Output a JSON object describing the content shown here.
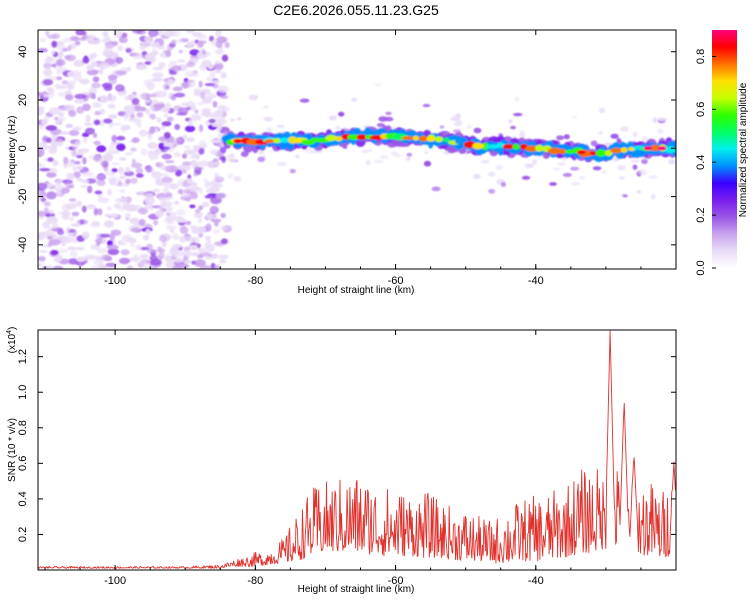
{
  "figure": {
    "title": "C2E6.2026.055.11.23.G25"
  },
  "colors": {
    "snr_line": "#e0322d",
    "frame": "#000000",
    "cmap": [
      "#ffffff",
      "#e9dcf7",
      "#c9a4ee",
      "#9a55e6",
      "#7a1ef0",
      "#3a00ff",
      "#0090ff",
      "#00f0f0",
      "#00ff60",
      "#30ff00",
      "#c8ff00",
      "#ffe000",
      "#ff7000",
      "#ff0000",
      "#ff0080"
    ]
  },
  "chart_data": [
    {
      "type": "heatmap",
      "name": "spectrogram",
      "xlabel": "Height of straight line (km)",
      "ylabel": "Frequency (Hz)",
      "xlim": [
        -111,
        -20
      ],
      "ylim": [
        -50,
        49
      ],
      "xticks": [
        -100,
        -80,
        -60,
        -40
      ],
      "xtick_labels": [
        "-100",
        "-80",
        "-60",
        "-40"
      ],
      "yticks": [
        -40,
        -20,
        0,
        20,
        40
      ],
      "ytick_labels": [
        "-40",
        "-20",
        "0",
        "20",
        "40"
      ],
      "noise_region_x": [
        -111,
        -84
      ],
      "signal_track": {
        "x": [
          -84,
          -80,
          -76,
          -72,
          -68,
          -64,
          -60,
          -56,
          -52,
          -48,
          -44,
          -40,
          -36,
          -32,
          -28,
          -24,
          -20
        ],
        "freq": [
          3,
          3,
          3,
          3,
          4,
          5,
          5,
          4,
          3,
          1,
          1,
          0,
          -1,
          -2,
          -1,
          0,
          0
        ]
      },
      "colorbar": {
        "label": "Normalized spectral amplitude",
        "range": [
          0.0,
          0.9
        ],
        "ticks": [
          0.0,
          0.2,
          0.4,
          0.6,
          0.8
        ],
        "tick_labels": [
          "0.0",
          "0.2",
          "0.4",
          "0.6",
          "0.8"
        ]
      }
    },
    {
      "type": "line",
      "name": "snr",
      "xlabel": "Height of straight line (km)",
      "ylabel": "SNR (10 * v/v)",
      "y_scale_label": "(x10",
      "y_scale_exp": "4",
      "y_scale_close": ")",
      "xlim": [
        -111,
        -20
      ],
      "ylim": [
        0.0,
        1.35
      ],
      "xticks": [
        -100,
        -80,
        -60,
        -40
      ],
      "xtick_labels": [
        "-100",
        "-80",
        "-60",
        "-40"
      ],
      "yticks": [
        0.2,
        0.4,
        0.6,
        0.8,
        1.0,
        1.2
      ],
      "ytick_labels": [
        "0.2",
        "0.4",
        "0.6",
        "0.8",
        "1.0",
        "1.2"
      ],
      "envelope": {
        "x": [
          -111,
          -90,
          -85,
          -83,
          -80,
          -78,
          -76,
          -74,
          -72,
          -70,
          -68,
          -66,
          -64,
          -62,
          -60,
          -58,
          -56,
          -54,
          -52,
          -50,
          -48,
          -46,
          -44,
          -42,
          -40,
          -38,
          -36,
          -34,
          -32,
          -30,
          -29,
          -28,
          -27,
          -26,
          -24,
          -22,
          -20
        ],
        "low": [
          0.01,
          0.01,
          0.01,
          0.02,
          0.02,
          0.03,
          0.04,
          0.05,
          0.08,
          0.1,
          0.1,
          0.1,
          0.09,
          0.08,
          0.08,
          0.08,
          0.07,
          0.07,
          0.06,
          0.05,
          0.05,
          0.04,
          0.04,
          0.05,
          0.05,
          0.06,
          0.07,
          0.09,
          0.1,
          0.12,
          0.13,
          0.12,
          0.1,
          0.09,
          0.08,
          0.06,
          0.1
        ],
        "high": [
          0.02,
          0.02,
          0.03,
          0.06,
          0.1,
          0.12,
          0.18,
          0.32,
          0.46,
          0.5,
          0.52,
          0.55,
          0.52,
          0.48,
          0.46,
          0.44,
          0.45,
          0.4,
          0.36,
          0.34,
          0.3,
          0.28,
          0.36,
          0.4,
          0.42,
          0.44,
          0.48,
          0.56,
          0.6,
          0.55,
          0.7,
          0.52,
          0.5,
          0.48,
          0.52,
          0.45,
          0.55
        ]
      },
      "peaks": [
        {
          "x": -29.4,
          "y": 1.35
        },
        {
          "x": -27.4,
          "y": 0.96
        },
        {
          "x": -26.0,
          "y": 0.66
        },
        {
          "x": -20.3,
          "y": 0.61
        }
      ]
    }
  ]
}
